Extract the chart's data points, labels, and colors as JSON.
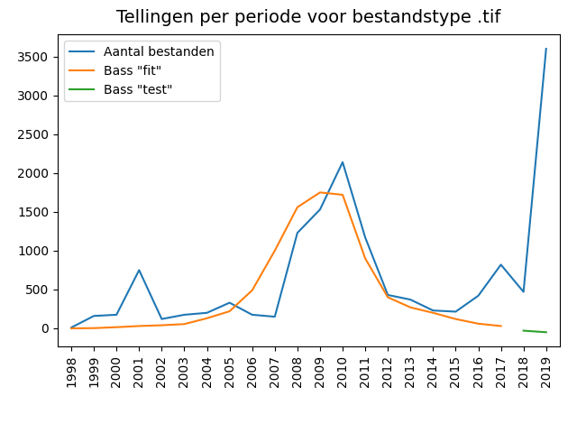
{
  "title": "Tellingen per periode voor bestandstype .tif",
  "years": [
    1998,
    1999,
    2000,
    2001,
    2002,
    2003,
    2004,
    2005,
    2006,
    2007,
    2008,
    2009,
    2010,
    2011,
    2012,
    2013,
    2014,
    2015,
    2016,
    2017,
    2018,
    2019
  ],
  "aantal_bestanden": [
    10,
    160,
    175,
    750,
    120,
    175,
    200,
    330,
    175,
    150,
    1230,
    1530,
    2140,
    1170,
    430,
    370,
    230,
    215,
    420,
    820,
    470,
    3600
  ],
  "bass_fit_years": [
    1998,
    1999,
    2000,
    2001,
    2002,
    2003,
    2004,
    2005,
    2006,
    2007,
    2008,
    2009,
    2010,
    2011,
    2012,
    2013,
    2014,
    2015,
    2016,
    2017
  ],
  "bass_fit": [
    0,
    3,
    15,
    30,
    40,
    55,
    130,
    220,
    490,
    1000,
    1560,
    1750,
    1720,
    900,
    400,
    270,
    200,
    120,
    60,
    30
  ],
  "bass_test_years": [
    2018,
    2019
  ],
  "bass_test": [
    -30,
    -50
  ],
  "line_color_aantal": "#1f77b4",
  "line_color_fit": "#ff7f0e",
  "line_color_test": "#2ca02c",
  "legend_labels": [
    "Aantal bestanden",
    "Bass \"fit\"",
    "Bass \"test\""
  ],
  "tick_fontsize": 10,
  "title_fontsize": 14,
  "legend_fontsize": 10,
  "figsize": [
    6.4,
    4.8
  ],
  "dpi": 100
}
